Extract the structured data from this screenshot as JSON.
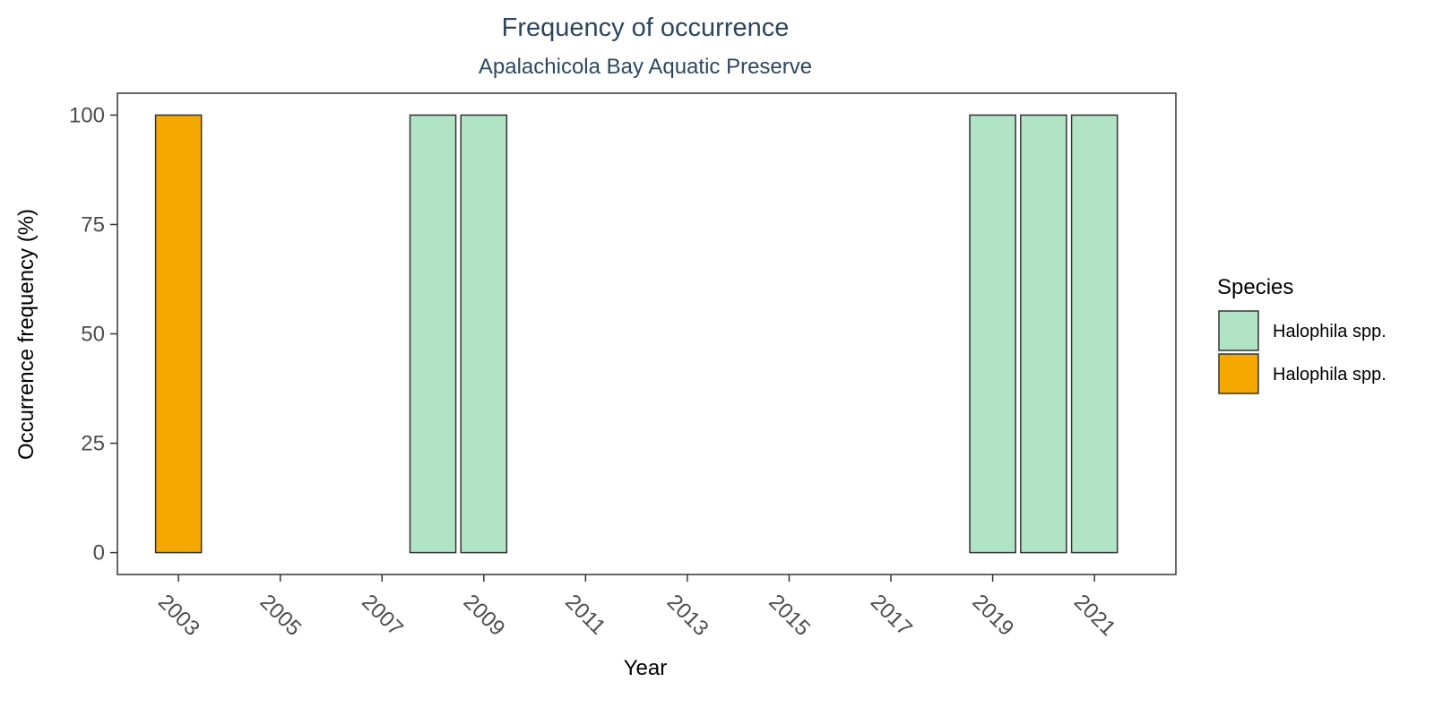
{
  "chart_data": {
    "type": "bar",
    "title": "Frequency of occurrence",
    "subtitle": "Apalachicola Bay Aquatic Preserve",
    "xlabel": "Year",
    "ylabel": "Occurrence frequency (%)",
    "xlim": [
      2001.8,
      2022.6
    ],
    "ylim": [
      -5,
      105
    ],
    "x_ticks": [
      2003,
      2005,
      2007,
      2009,
      2011,
      2013,
      2015,
      2017,
      2019,
      2021
    ],
    "y_ticks": [
      0,
      25,
      50,
      75,
      100
    ],
    "grid": false,
    "legend": {
      "title": "Species",
      "position": "right",
      "entries": [
        {
          "label": "Halophila spp.",
          "color": "#b0e4c4"
        },
        {
          "label": "Halophila spp.",
          "color": "#f4a800"
        }
      ]
    },
    "bar_width_years": 0.9,
    "bars": [
      {
        "x": 2003,
        "value": 100,
        "series": 1
      },
      {
        "x": 2008,
        "value": 100,
        "series": 0
      },
      {
        "x": 2009,
        "value": 100,
        "series": 0
      },
      {
        "x": 2019,
        "value": 100,
        "series": 0
      },
      {
        "x": 2020,
        "value": 100,
        "series": 0
      },
      {
        "x": 2021,
        "value": 100,
        "series": 0
      }
    ],
    "colors": {
      "bar_outline": "#333333",
      "panel_border": "#333333",
      "axis_ticks": "#333333"
    }
  }
}
